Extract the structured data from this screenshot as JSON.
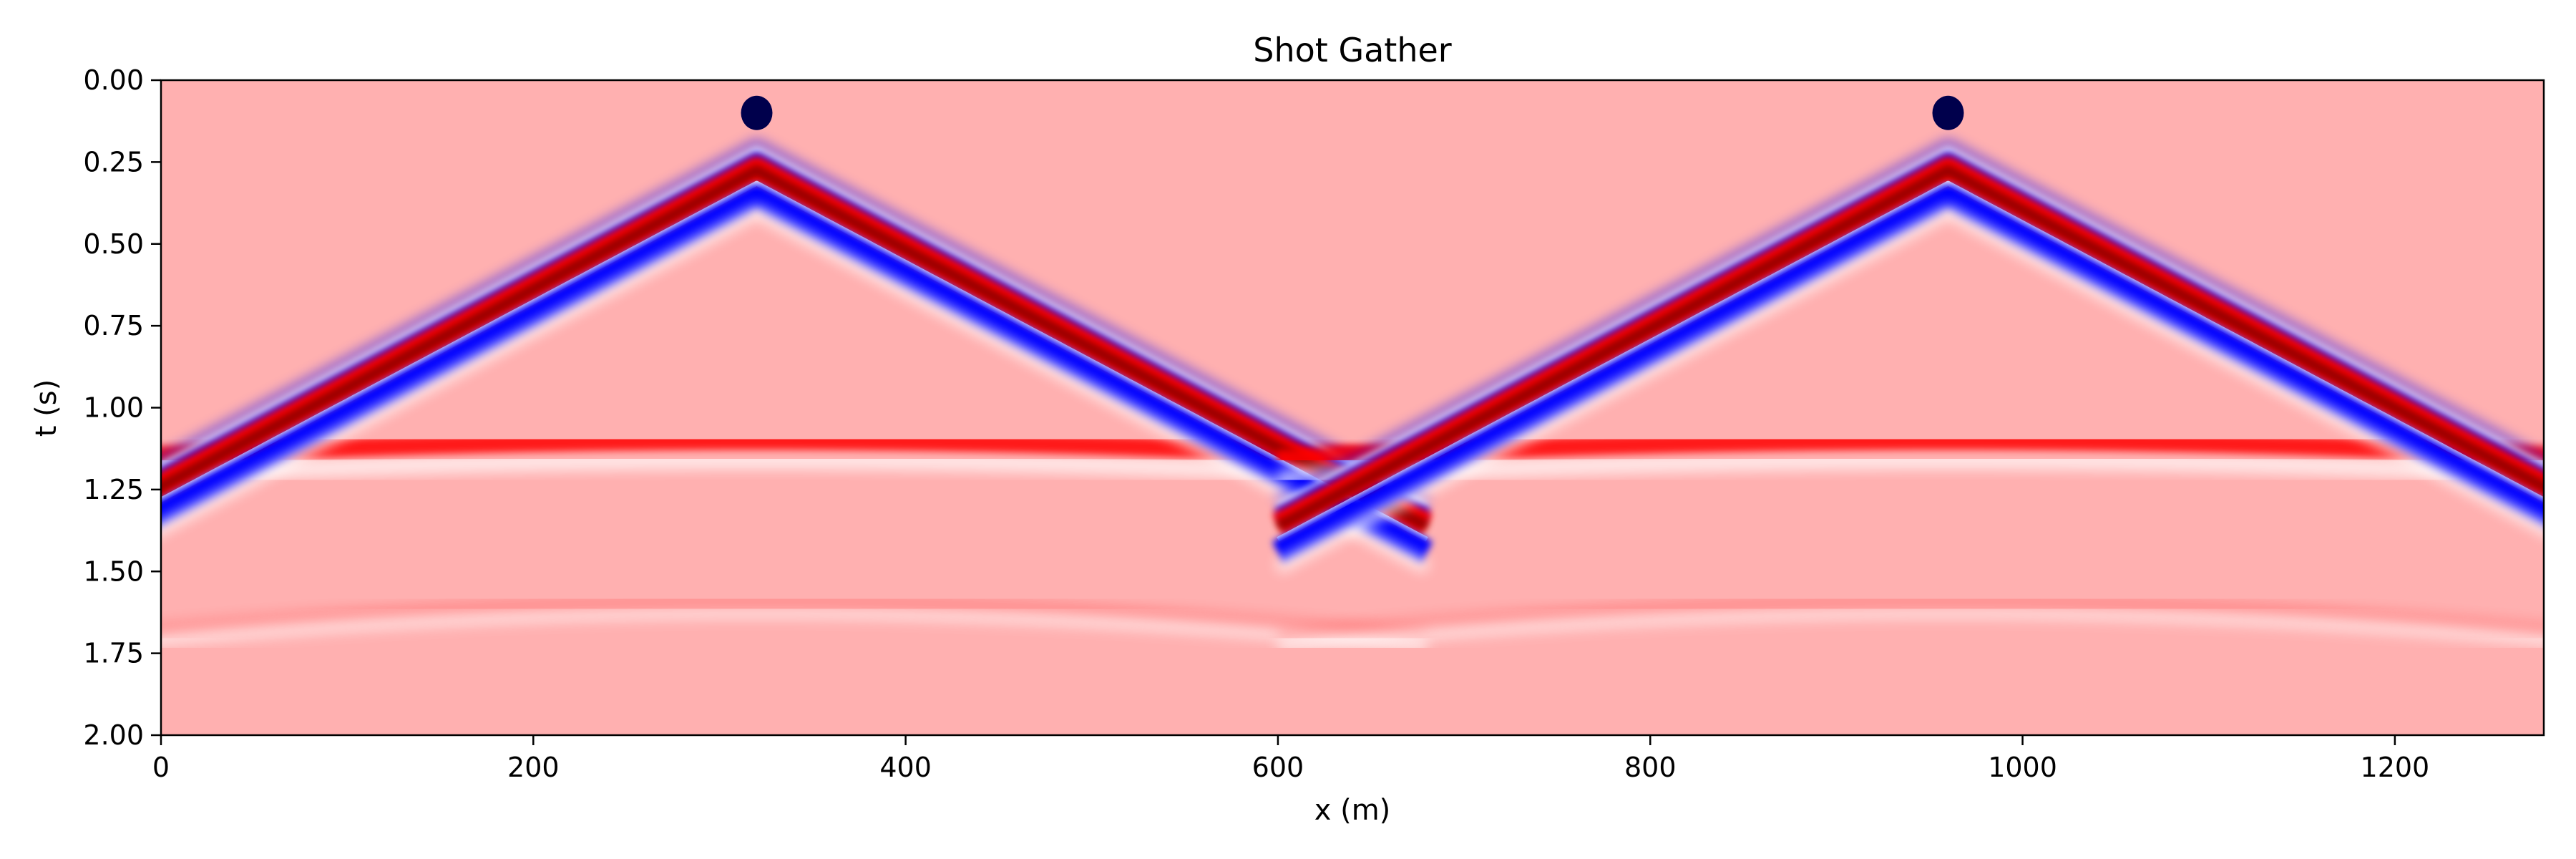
{
  "chart_data": {
    "type": "heatmap",
    "title": "Shot Gather",
    "xlabel": "x (m)",
    "ylabel": "t (s)",
    "xlim": [
      0,
      1280
    ],
    "ylim": [
      2.0,
      0.0
    ],
    "y_inverted": true,
    "grid": false,
    "colormap": "seismic",
    "background_color": "#ffb0b0",
    "colors": {
      "deep_blue": "#00004c",
      "blue": "#0000ff",
      "white": "#ffffff",
      "red": "#ff0000",
      "dark_red": "#7f0000"
    },
    "x_ticks": [
      0,
      200,
      400,
      600,
      800,
      1000,
      1200
    ],
    "x_tick_labels": [
      "0",
      "200",
      "400",
      "600",
      "800",
      "1000",
      "1200"
    ],
    "y_ticks": [
      0.0,
      0.25,
      0.5,
      0.75,
      1.0,
      1.25,
      1.5,
      1.75,
      2.0
    ],
    "y_tick_labels": [
      "0.00",
      "0.25",
      "0.50",
      "0.75",
      "1.00",
      "1.25",
      "1.50",
      "1.75",
      "2.00"
    ],
    "sources": [
      {
        "x": 320,
        "t_apex": 0.08
      },
      {
        "x": 960,
        "t_apex": 0.08
      }
    ],
    "events": [
      {
        "name": "direct-wave",
        "kind": "linear",
        "slowness_s_per_m": 0.00302,
        "t0": 0.08,
        "polarity": "blue-red-blue"
      },
      {
        "name": "reflection-1",
        "kind": "hyperbola",
        "t0": 1.1,
        "velocity_m_per_s": 1000,
        "polarity": "red"
      },
      {
        "name": "reflection-2",
        "kind": "hyperbola",
        "t0": 1.62,
        "velocity_m_per_s": 600,
        "polarity": "faint"
      }
    ]
  }
}
